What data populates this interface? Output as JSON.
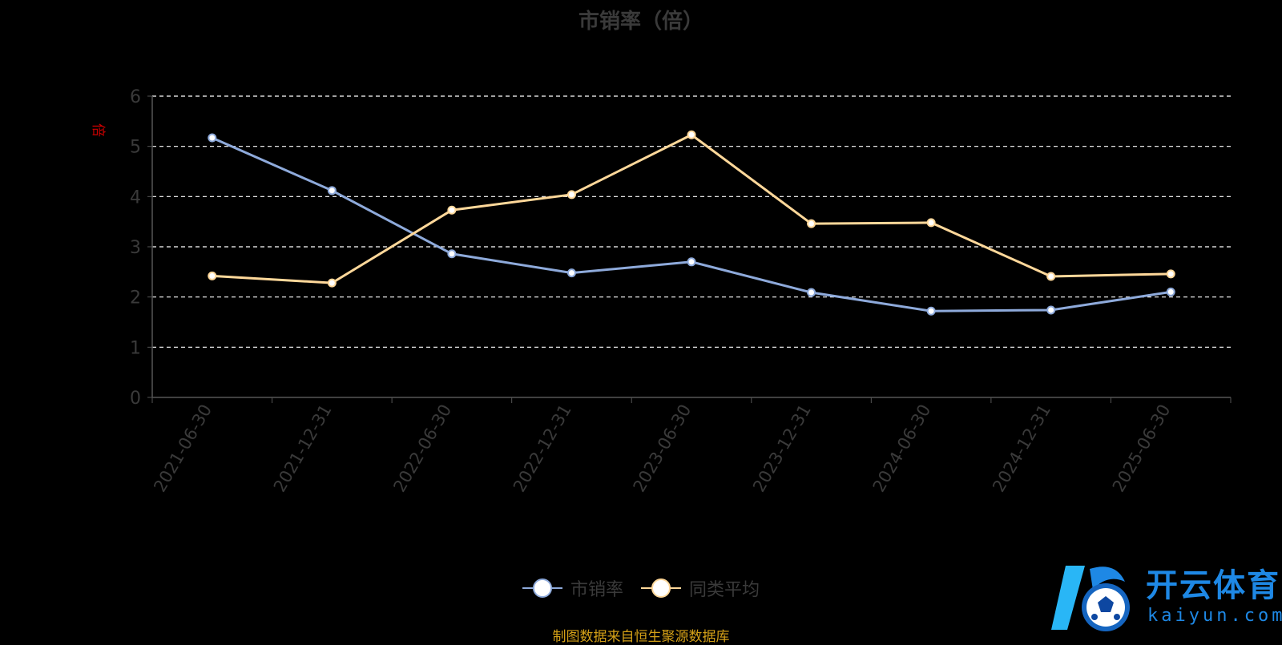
{
  "title": "市销率（倍）",
  "unit_label": "倍",
  "source_note": "制图数据来自恒生聚源数据库",
  "logo": {
    "cn": "开云体育",
    "en": "kaiyun.com"
  },
  "colors": {
    "series1": "#8eaadb",
    "series2": "#ffd89a",
    "grid": "#ffffff",
    "axis": "#555555",
    "text": "#3a3a3a",
    "unit": "#cc0000",
    "source": "#d4a017"
  },
  "legend": [
    {
      "name": "市销率",
      "color": "#8eaadb"
    },
    {
      "name": "同类平均",
      "color": "#ffd89a"
    }
  ],
  "chart_data": {
    "type": "line",
    "title": "市销率（倍）",
    "ylabel": "倍",
    "ylim": [
      0,
      6
    ],
    "yticks": [
      0,
      1,
      2,
      3,
      4,
      5,
      6
    ],
    "grid": true,
    "legend_position": "bottom",
    "categories": [
      "2021-06-30",
      "2021-12-31",
      "2022-06-30",
      "2022-12-31",
      "2023-06-30",
      "2023-12-31",
      "2024-06-30",
      "2024-12-31",
      "2025-06-30"
    ],
    "series": [
      {
        "name": "市销率",
        "values": [
          5.17,
          4.12,
          2.86,
          2.48,
          2.7,
          2.09,
          1.72,
          1.74,
          2.1
        ]
      },
      {
        "name": "同类平均",
        "values": [
          2.42,
          2.28,
          3.73,
          4.04,
          5.23,
          3.46,
          3.48,
          2.41,
          2.46
        ]
      }
    ]
  }
}
